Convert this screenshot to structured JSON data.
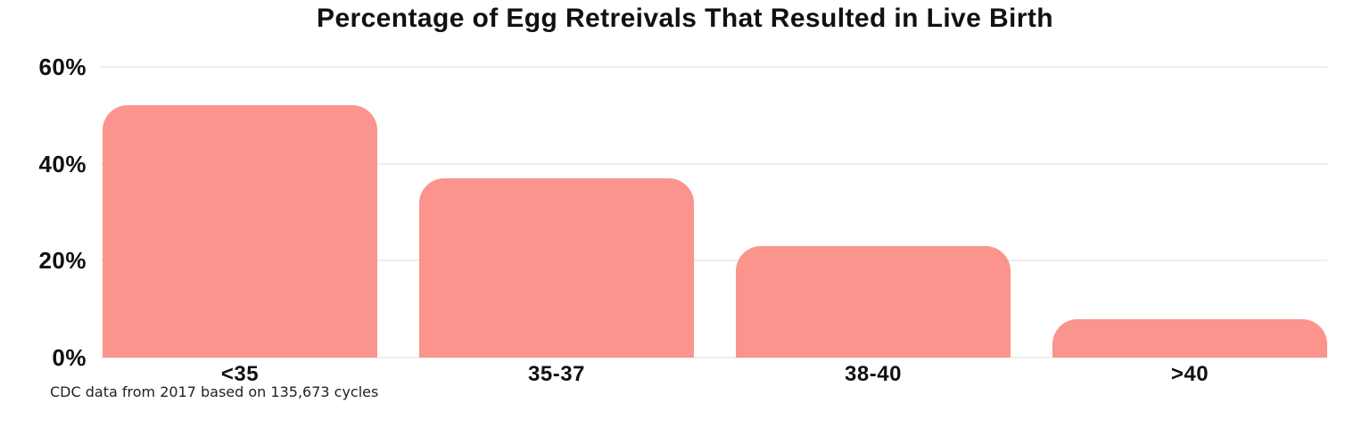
{
  "chart_data": {
    "type": "bar",
    "title": "Percentage of Egg Retreivals That Resulted in Live Birth",
    "categories": [
      "<35",
      "35-37",
      "38-40",
      ">40"
    ],
    "values": [
      52,
      37,
      23,
      8
    ],
    "xlabel": "",
    "ylabel": "",
    "ylim": [
      0,
      60
    ],
    "y_ticks": [
      {
        "value": 60,
        "label": "60%"
      },
      {
        "value": 40,
        "label": "40%"
      },
      {
        "value": 20,
        "label": "20%"
      },
      {
        "value": 0,
        "label": "0%"
      }
    ],
    "grid": true,
    "legend": false,
    "footnote": "CDC data from 2017 based on 135,673 cycles",
    "bar_color": "#FA948C",
    "gridline_color": "#EDEDED",
    "text_color": "#111111",
    "background_color": "#FFFFFF"
  }
}
